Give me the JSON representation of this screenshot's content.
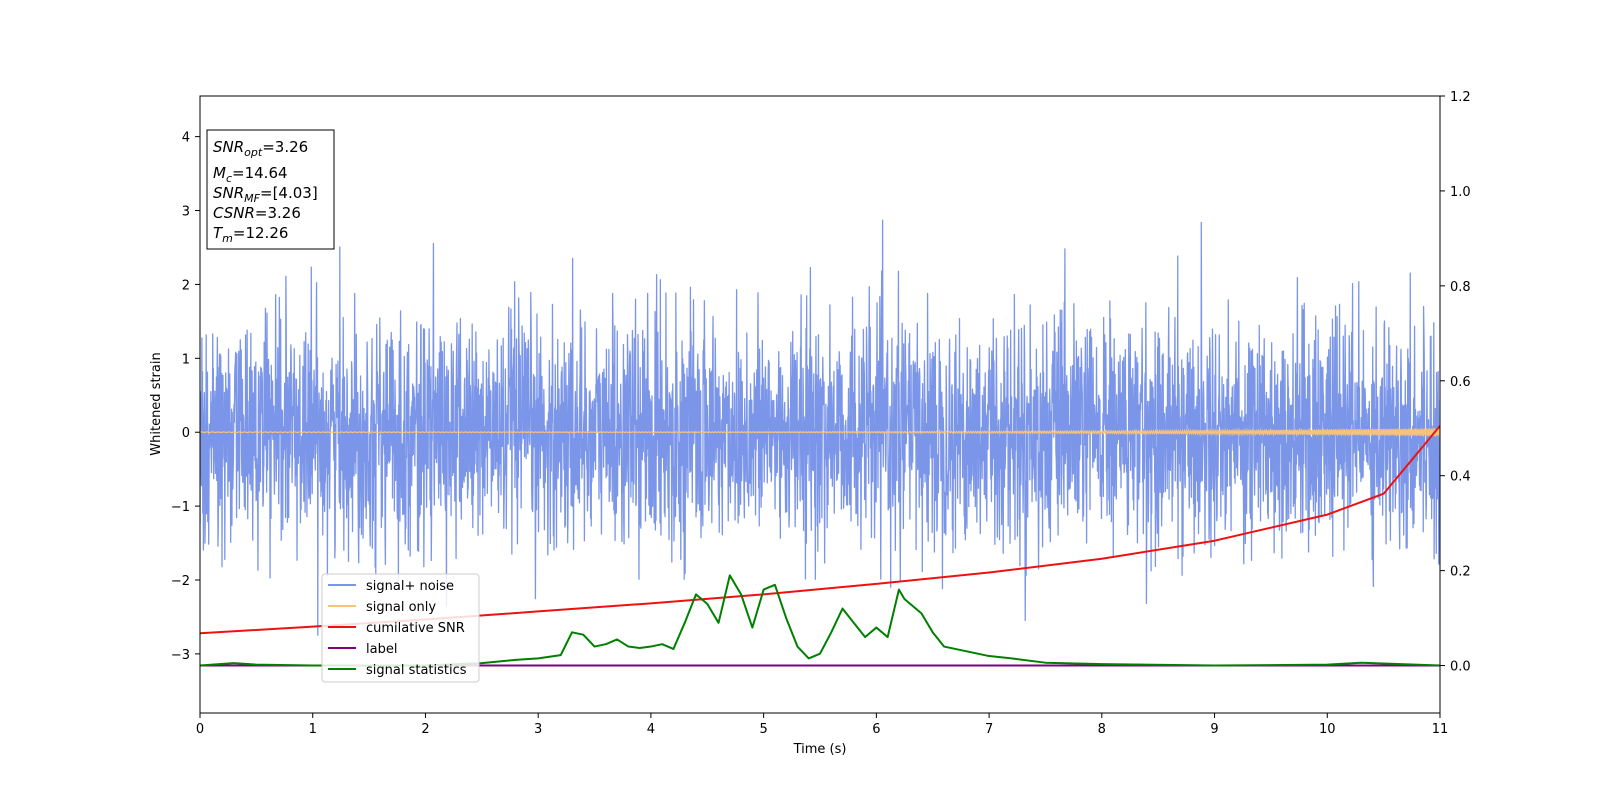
{
  "chart_data": {
    "type": "line",
    "x_axis": {
      "label": "Time (s)",
      "range": [
        0,
        11
      ],
      "ticks": [
        "0",
        "1",
        "2",
        "3",
        "4",
        "5",
        "6",
        "7",
        "8",
        "9",
        "10",
        "11"
      ]
    },
    "y_axis_left": {
      "label": "Whitened strain",
      "range": [
        -3.8,
        4.55
      ],
      "ticks": [
        "−3",
        "−2",
        "−1",
        "0",
        "1",
        "2",
        "3",
        "4"
      ],
      "tick_values": [
        -3,
        -2,
        -1,
        0,
        1,
        2,
        3,
        4
      ]
    },
    "y_axis_right": {
      "label": "",
      "range": [
        -0.1,
        1.2
      ],
      "ticks": [
        "0.0",
        "0.2",
        "0.4",
        "0.6",
        "0.8",
        "1.0",
        "1.2"
      ],
      "tick_values": [
        0,
        0.2,
        0.4,
        0.6,
        0.8,
        1.0,
        1.2
      ]
    },
    "annotation": [
      {
        "main": "SNR",
        "sub": "opt",
        "value": "=3.26"
      },
      {
        "main": "M",
        "sub": "c",
        "value": "=14.64"
      },
      {
        "main": "SNR",
        "sub": "MF",
        "value": "=[4.03]"
      },
      {
        "main": "CSNR",
        "sub": "",
        "value": "=3.26"
      },
      {
        "main": "T",
        "sub": "m",
        "value": "=12.26"
      }
    ],
    "legend": {
      "placement": "lower-left",
      "entries": [
        {
          "name": "signal+ noise",
          "color": "#7b96e8"
        },
        {
          "name": "signal only",
          "color": "#f7c27a"
        },
        {
          "name": "cumilative SNR",
          "color": "#ee1111"
        },
        {
          "name": "label",
          "color": "#7f007f"
        },
        {
          "name": "signal statistics",
          "color": "#008000"
        }
      ]
    },
    "series": [
      {
        "name": "signal+ noise",
        "axis": "left",
        "color": "#7b96e8",
        "style": "dense gaussian noise, approx. mean 0, std 0.75, range about -3.2 to 3.2, sampled over 0-11 s"
      },
      {
        "name": "signal only",
        "axis": "left",
        "color": "#f7c27a",
        "style": "small chirp near 0, amplitude growing to about 0.05 by 11 s"
      },
      {
        "name": "cumilative SNR",
        "axis": "right",
        "color": "#ee1111",
        "x": [
          0,
          1,
          2,
          3,
          4,
          5,
          6,
          7,
          8,
          9,
          10,
          10.5,
          11
        ],
        "y": [
          0.068,
          0.082,
          0.097,
          0.114,
          0.131,
          0.15,
          0.172,
          0.196,
          0.225,
          0.263,
          0.318,
          0.362,
          0.505
        ]
      },
      {
        "name": "label",
        "axis": "right",
        "color": "#7f007f",
        "x": [
          0,
          11
        ],
        "y": [
          0,
          0
        ]
      },
      {
        "name": "signal statistics",
        "axis": "right",
        "color": "#008000",
        "x": [
          0,
          0.3,
          0.5,
          1.0,
          2.0,
          2.5,
          2.8,
          3.0,
          3.2,
          3.3,
          3.4,
          3.5,
          3.6,
          3.7,
          3.8,
          3.9,
          4.0,
          4.1,
          4.2,
          4.3,
          4.4,
          4.5,
          4.6,
          4.7,
          4.8,
          4.9,
          5.0,
          5.1,
          5.2,
          5.3,
          5.4,
          5.5,
          5.6,
          5.7,
          5.8,
          5.9,
          6.0,
          6.1,
          6.2,
          6.25,
          6.3,
          6.4,
          6.5,
          6.6,
          6.8,
          7.0,
          7.2,
          7.5,
          8.0,
          9.0,
          10.0,
          10.3,
          11.0
        ],
        "y": [
          0.0,
          0.005,
          0.002,
          0.0,
          0.0,
          0.005,
          0.012,
          0.015,
          0.022,
          0.07,
          0.065,
          0.04,
          0.045,
          0.055,
          0.04,
          0.037,
          0.04,
          0.045,
          0.035,
          0.09,
          0.15,
          0.13,
          0.09,
          0.19,
          0.15,
          0.08,
          0.16,
          0.17,
          0.1,
          0.04,
          0.015,
          0.025,
          0.07,
          0.12,
          0.09,
          0.06,
          0.08,
          0.06,
          0.16,
          0.14,
          0.13,
          0.11,
          0.07,
          0.04,
          0.03,
          0.02,
          0.015,
          0.006,
          0.003,
          0.0,
          0.002,
          0.006,
          0.0
        ]
      }
    ]
  }
}
